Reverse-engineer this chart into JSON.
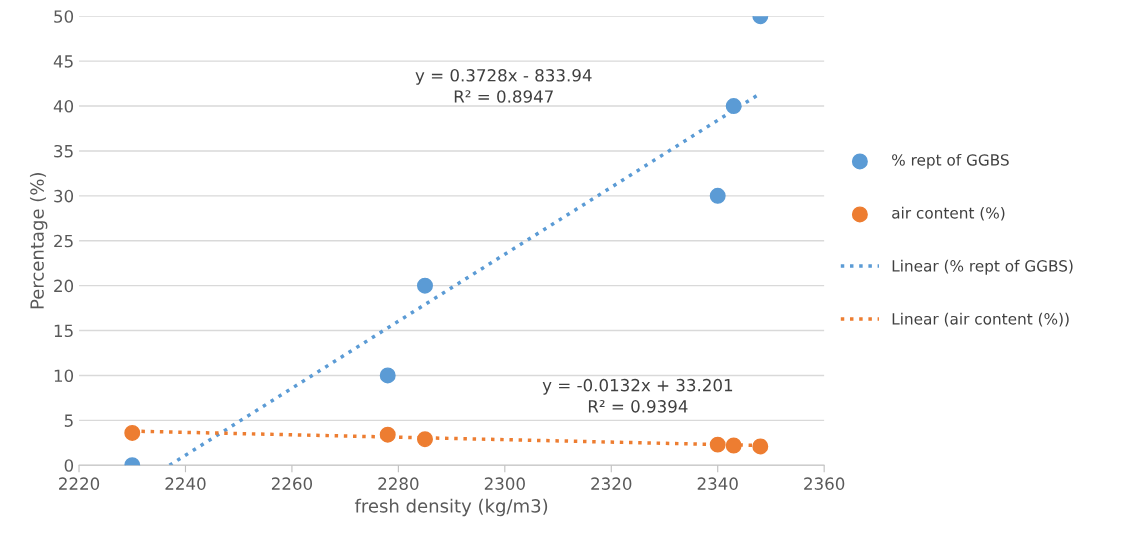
{
  "chart_data": {
    "type": "scatter",
    "xlabel": "fresh density (kg/m3)",
    "ylabel": "Percentage (%)",
    "series": [
      {
        "name": "% rept of GGBS",
        "color": "#5b9bd5",
        "marker": "circle",
        "x": [
          2230,
          2278,
          2285,
          2340,
          2343,
          2348
        ],
        "values": [
          0,
          10,
          20,
          30,
          40,
          50
        ]
      },
      {
        "name": "air content (%)",
        "color": "#ed7d31",
        "marker": "circle",
        "x": [
          2230,
          2278,
          2285,
          2340,
          2343,
          2348
        ],
        "values": [
          3.6,
          3.4,
          2.9,
          2.3,
          2.2,
          2.1
        ]
      },
      {
        "name": "Linear (% rept of GGBS)",
        "type": "line",
        "color": "#5b9bd5",
        "line_style": "dotted",
        "marker": "none",
        "x": [
          2237,
          2348
        ],
        "values": [
          0,
          41.4
        ]
      },
      {
        "name": "Linear (air content (%))",
        "type": "line",
        "color": "#ed7d31",
        "line_style": "dotted",
        "marker": "none",
        "x": [
          2230,
          2348
        ],
        "values": [
          3.8,
          2.2
        ]
      }
    ],
    "annotations": [
      "y = 0.3728x - 833.94\nR² = 0.8947",
      "y = -0.0132x + 33.201\nR² = 0.9394"
    ],
    "xlim": [
      2220,
      2360
    ],
    "xticks": [
      2220,
      2240,
      2260,
      2280,
      2300,
      2320,
      2340,
      2360
    ],
    "ylim": [
      0,
      50
    ],
    "yticks": [
      0,
      5,
      10,
      15,
      20,
      25,
      30,
      35,
      40,
      45,
      50
    ],
    "grid": "y",
    "legend": "right"
  }
}
